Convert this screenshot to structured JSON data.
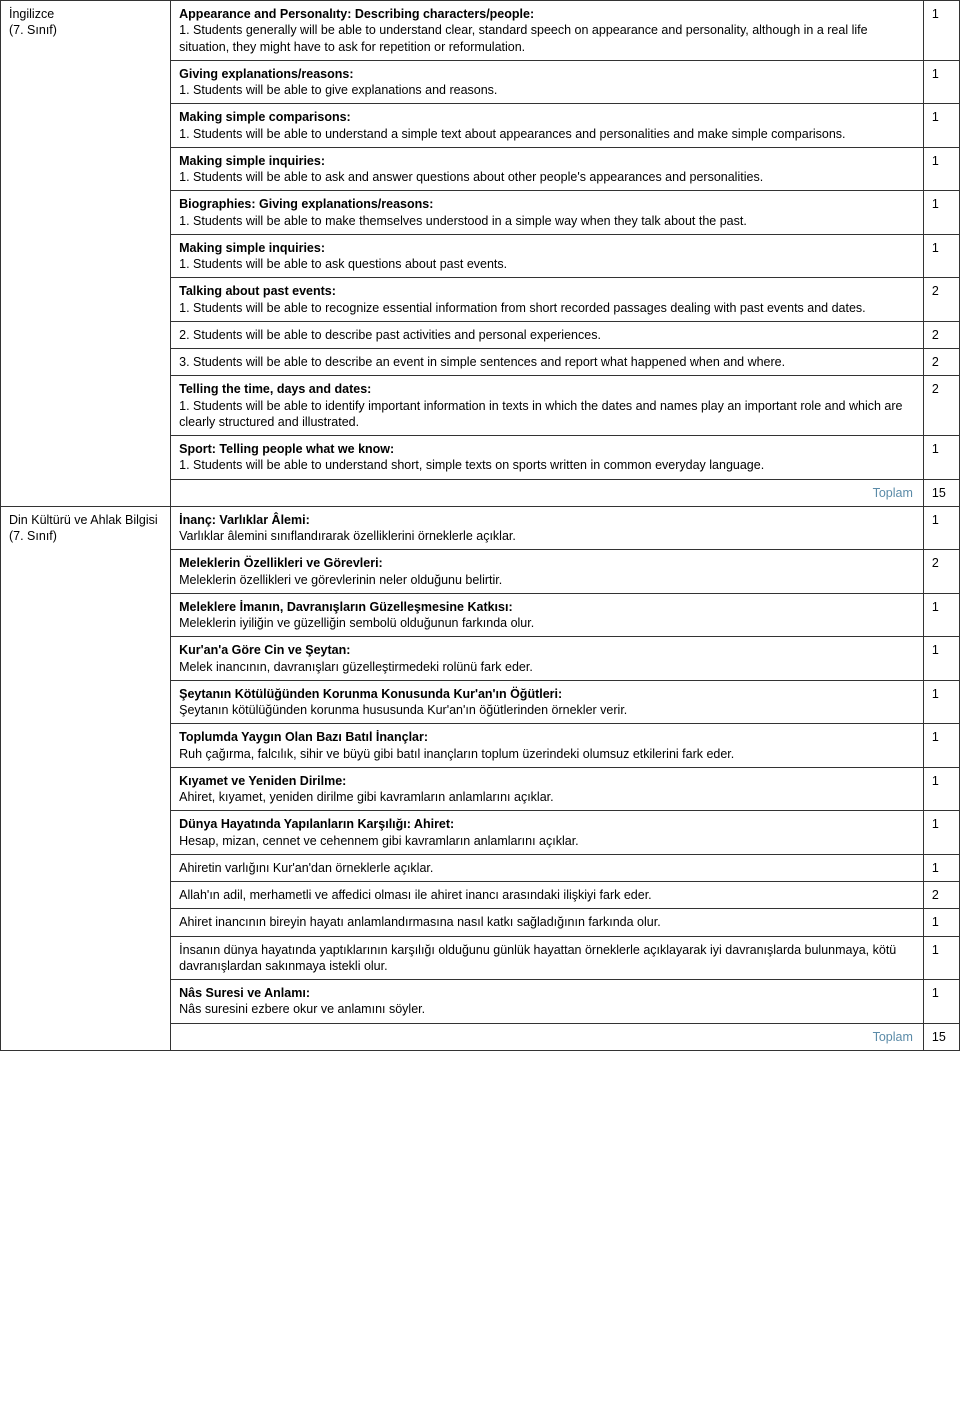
{
  "subjects": [
    {
      "name": "İngilizce",
      "grade": "(7. Sınıf)",
      "rows": [
        {
          "title": "Appearance and Personalıty: Describing characters/people:",
          "text": "1. Students generally will be able to understand clear, standard speech on appearance and personality, although in a real life situation, they might have to ask for repetition or reformulation.",
          "count": "1"
        },
        {
          "title": "Giving explanations/reasons:",
          "text": "1. Students will be able to give explanations and reasons.",
          "count": "1"
        },
        {
          "title": "Making simple comparisons:",
          "text": "1. Students will be able to understand a simple text about appearances and personalities and make simple comparisons.",
          "count": "1"
        },
        {
          "title": "Making simple inquiries:",
          "text": "1. Students will be able to ask and answer questions about other people's appearances and personalities.",
          "count": "1"
        },
        {
          "title": "Biographies: Giving explanations/reasons:",
          "text": "1. Students will be able to make themselves understood in a simple way when they talk about the past.",
          "count": "1"
        },
        {
          "title": "Making simple inquiries:",
          "text": "1. Students will be able to ask questions about past events.",
          "count": "1"
        },
        {
          "title": "Talking about past events:",
          "text": "1. Students will be able to recognize essential information from short recorded passages dealing with past events and dates.",
          "count": "2"
        },
        {
          "title": "",
          "text": "2. Students will be able to describe past activities and personal experiences.",
          "count": "2"
        },
        {
          "title": "",
          "text": "3. Students will be able to describe an event in simple sentences and report what happened when and where.",
          "count": "2"
        },
        {
          "title": "Telling the time, days and dates:",
          "text": "1. Students will be able to identify important information in texts in which the dates and names play an important role and which are clearly structured and illustrated.",
          "count": "2"
        },
        {
          "title": "Sport: Telling people what we know:",
          "text": "1. Students will be able to understand short, simple texts on sports written in common everyday language.",
          "count": "1"
        }
      ],
      "total_label": "Toplam",
      "total_value": "15"
    },
    {
      "name": "Din Kültürü ve Ahlak Bilgisi",
      "grade": "(7. Sınıf)",
      "rows": [
        {
          "title": "İnanç: Varlıklar Âlemi:",
          "text": "Varlıklar âlemini sınıflandırarak özelliklerini örneklerle açıklar.",
          "count": "1"
        },
        {
          "title": "Meleklerin Özellikleri ve Görevleri:",
          "text": "Meleklerin özellikleri ve görevlerinin neler olduğunu belirtir.",
          "count": "2"
        },
        {
          "title": "Meleklere İmanın, Davranışların Güzelleşmesine Katkısı:",
          "text": "Meleklerin iyiliğin ve güzelliğin sembolü olduğunun farkında olur.",
          "count": "1"
        },
        {
          "title": "Kur'an'a Göre Cin ve Şeytan:",
          "text": "Melek inancının, davranışları güzelleştirmedeki rolünü fark eder.",
          "count": "1"
        },
        {
          "title": "Şeytanın Kötülüğünden Korunma Konusunda Kur'an'ın Öğütleri:",
          "text": "Şeytanın kötülüğünden korunma hususunda Kur'an'ın öğütlerinden örnekler verir.",
          "count": "1"
        },
        {
          "title": "Toplumda Yaygın Olan Bazı Batıl İnançlar:",
          "text": "Ruh çağırma, falcılık, sihir ve büyü gibi batıl inançların toplum üzerindeki olumsuz etkilerini fark eder.",
          "count": "1"
        },
        {
          "title": "Kıyamet ve Yeniden Dirilme:",
          "text": "Ahiret, kıyamet, yeniden dirilme gibi kavramların anlamlarını açıklar.",
          "count": "1"
        },
        {
          "title": "Dünya Hayatında Yapılanların Karşılığı: Ahiret:",
          "text": "Hesap, mizan, cennet ve cehennem gibi kavramların anlamlarını açıklar.",
          "count": "1"
        },
        {
          "title": "",
          "text": "Ahiretin varlığını Kur'an'dan örneklerle açıklar.",
          "count": "1"
        },
        {
          "title": "",
          "text": "Allah'ın adil, merhametli ve affedici olması ile ahiret inancı arasındaki ilişkiyi fark eder.",
          "count": "2"
        },
        {
          "title": "",
          "text": "Ahiret inancının bireyin hayatı anlamlandırmasına nasıl katkı sağladığının farkında olur.",
          "count": "1"
        },
        {
          "title": "",
          "text": "İnsanın dünya hayatında yaptıklarının karşılığı olduğunu günlük hayattan örneklerle açıklayarak iyi davranışlarda bulunmaya, kötü davranışlardan sakınmaya istekli olur.",
          "count": "1"
        },
        {
          "title": "Nâs Suresi ve Anlamı:",
          "text": "Nâs suresini ezbere okur ve anlamını söyler.",
          "count": "1"
        }
      ],
      "total_label": "Toplam",
      "total_value": "15"
    }
  ]
}
